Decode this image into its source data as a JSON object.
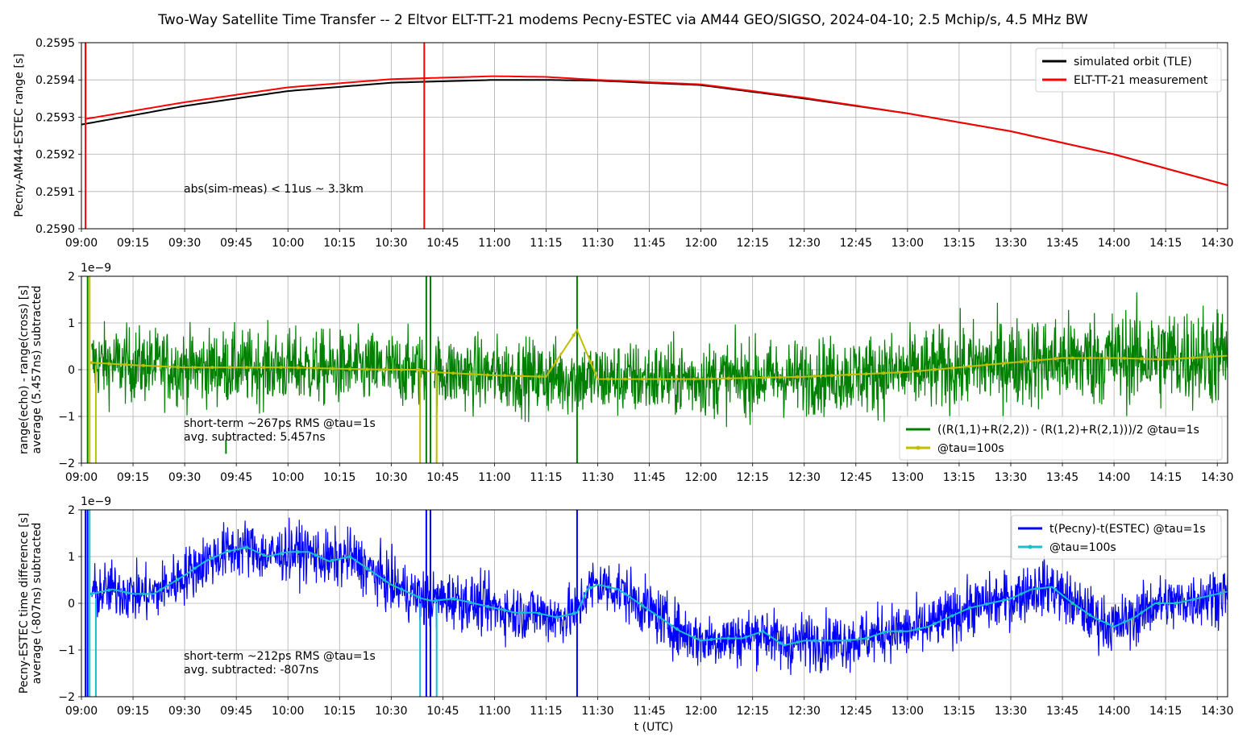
{
  "figure": {
    "title": "Two-Way Satellite Time Transfer -- 2 Eltvor ELT-TT-21 modems Pecny-ESTEC via AM44 GEO/SIGSO, 2024-04-10; 2.5 Mchip/s, 4.5 MHz BW",
    "xlabel": "t (UTC)",
    "xticks": [
      "09:00",
      "09:15",
      "09:30",
      "09:45",
      "10:00",
      "10:15",
      "10:30",
      "10:45",
      "11:00",
      "11:15",
      "11:30",
      "11:45",
      "12:00",
      "12:15",
      "12:30",
      "12:45",
      "13:00",
      "13:15",
      "13:30",
      "13:45",
      "14:00",
      "14:15",
      "14:30"
    ]
  },
  "chart_data": [
    {
      "type": "line",
      "ylabel": "Pecny-AM44-ESTEC range [s]",
      "ylim": [
        0.259,
        0.2595
      ],
      "yticks": [
        "0.2590",
        "0.2591",
        "0.2592",
        "0.2593",
        "0.2594",
        "0.2595"
      ],
      "xlim_hours": [
        9.0,
        14.55
      ],
      "grid": true,
      "legend_position": "top-right",
      "annotation": "abs(sim-meas) < 11us ~ 3.3km",
      "series": [
        {
          "name": "simulated orbit (TLE)",
          "color": "#000000",
          "x_hours": [
            9.0,
            9.5,
            10.0,
            10.5,
            11.0,
            11.25,
            11.5,
            12.0,
            12.5,
            13.0,
            13.5,
            14.0,
            14.55
          ],
          "values": [
            0.25928,
            0.25933,
            0.25937,
            0.2593925,
            0.2594,
            0.2594,
            0.259398,
            0.259386,
            0.25935,
            0.25931,
            0.259262,
            0.2592,
            0.259117
          ]
        },
        {
          "name": "ELT-TT-21 measurement",
          "color": "#ff0000",
          "x_hours": [
            9.02,
            9.5,
            10.0,
            10.5,
            11.0,
            11.25,
            11.5,
            12.0,
            12.5,
            13.0,
            13.5,
            14.0,
            14.55
          ],
          "values": [
            0.259295,
            0.25934,
            0.25938,
            0.259402,
            0.25941,
            0.259408,
            0.2594,
            0.259388,
            0.259352,
            0.25931,
            0.259262,
            0.2592,
            0.259117
          ],
          "glitches_hours": [
            9.02,
            10.66
          ]
        }
      ]
    },
    {
      "type": "line",
      "ylabel": "range(echo) - range(cross) [s]\naverage (5.457ns) subtracted",
      "yscale_label": "1e−9",
      "ylim": [
        -2,
        2
      ],
      "yticks": [
        "−2",
        "−1",
        "0",
        "1",
        "2"
      ],
      "grid": true,
      "legend_position": "lower-right",
      "annotation": [
        "short-term ~267ps RMS @tau=1s",
        "avg. subtracted: 5.457ns"
      ],
      "series": [
        {
          "name": "((R(1,1)+R(2,2)) - (R(1,2)+R(2,1)))/2 @tau=1s",
          "color": "#008000",
          "rms": 0.267,
          "trend_x_hours": [
            9.05,
            9.5,
            10.0,
            10.5,
            10.66,
            10.7,
            11.0,
            11.5,
            12.0,
            12.5,
            13.0,
            13.5,
            14.0,
            14.55
          ],
          "trend_values": [
            0.15,
            0.05,
            0.05,
            0.0,
            0.0,
            -0.05,
            -0.1,
            -0.2,
            -0.2,
            -0.15,
            -0.05,
            0.15,
            0.25,
            0.3
          ]
        },
        {
          "name": "@tau=100s",
          "color": "#bfbf00",
          "x_hours": [
            9.05,
            9.25,
            9.5,
            9.75,
            10.0,
            10.25,
            10.5,
            10.65,
            10.7,
            11.0,
            11.25,
            11.4,
            11.5,
            12.0,
            12.5,
            13.0,
            13.5,
            13.75,
            14.0,
            14.25,
            14.55
          ],
          "values": [
            0.15,
            0.1,
            0.05,
            0.05,
            0.05,
            0.02,
            0.0,
            0.0,
            -0.05,
            -0.12,
            -0.15,
            0.85,
            -0.2,
            -0.2,
            -0.15,
            -0.05,
            0.15,
            0.25,
            0.25,
            0.22,
            0.3
          ]
        }
      ]
    },
    {
      "type": "line",
      "ylabel": "Pecny-ESTEC time difference [s]\naverage (-807ns) subtracted",
      "yscale_label": "1e−9",
      "ylim": [
        -2,
        2
      ],
      "yticks": [
        "−2",
        "−1",
        "0",
        "1",
        "2"
      ],
      "grid": true,
      "legend_position": "top-right",
      "annotation": [
        "short-term ~212ps RMS @tau=1s",
        "avg. subtracted: -807ns"
      ],
      "series": [
        {
          "name": "t(Pecny)-t(ESTEC) @tau=1s",
          "color": "#0000ff",
          "rms": 0.212
        },
        {
          "name": "@tau=100s",
          "color": "#17becf",
          "x_hours": [
            9.05,
            9.15,
            9.25,
            9.35,
            9.5,
            9.6,
            9.7,
            9.8,
            9.9,
            10.0,
            10.1,
            10.2,
            10.3,
            10.4,
            10.5,
            10.6,
            10.65,
            10.7,
            10.8,
            10.9,
            11.0,
            11.1,
            11.2,
            11.3,
            11.4,
            11.45,
            11.5,
            11.6,
            11.7,
            11.8,
            11.9,
            12.0,
            12.1,
            12.2,
            12.3,
            12.4,
            12.5,
            12.6,
            12.7,
            12.8,
            12.9,
            13.0,
            13.1,
            13.2,
            13.3,
            13.4,
            13.5,
            13.6,
            13.7,
            13.8,
            13.9,
            14.0,
            14.1,
            14.2,
            14.3,
            14.4,
            14.55
          ],
          "values": [
            0.2,
            0.3,
            0.2,
            0.2,
            0.6,
            0.9,
            1.1,
            1.2,
            1.0,
            1.1,
            1.1,
            0.9,
            1.0,
            0.7,
            0.4,
            0.2,
            0.1,
            0.05,
            0.1,
            0.0,
            -0.1,
            -0.2,
            -0.2,
            -0.3,
            -0.2,
            0.3,
            0.4,
            0.3,
            0.0,
            -0.3,
            -0.6,
            -0.8,
            -0.75,
            -0.75,
            -0.6,
            -0.9,
            -0.8,
            -0.8,
            -0.8,
            -0.75,
            -0.6,
            -0.6,
            -0.5,
            -0.3,
            -0.1,
            0.0,
            0.1,
            0.3,
            0.35,
            0.0,
            -0.3,
            -0.5,
            -0.3,
            0.0,
            0.0,
            0.1,
            0.25
          ]
        }
      ]
    }
  ]
}
